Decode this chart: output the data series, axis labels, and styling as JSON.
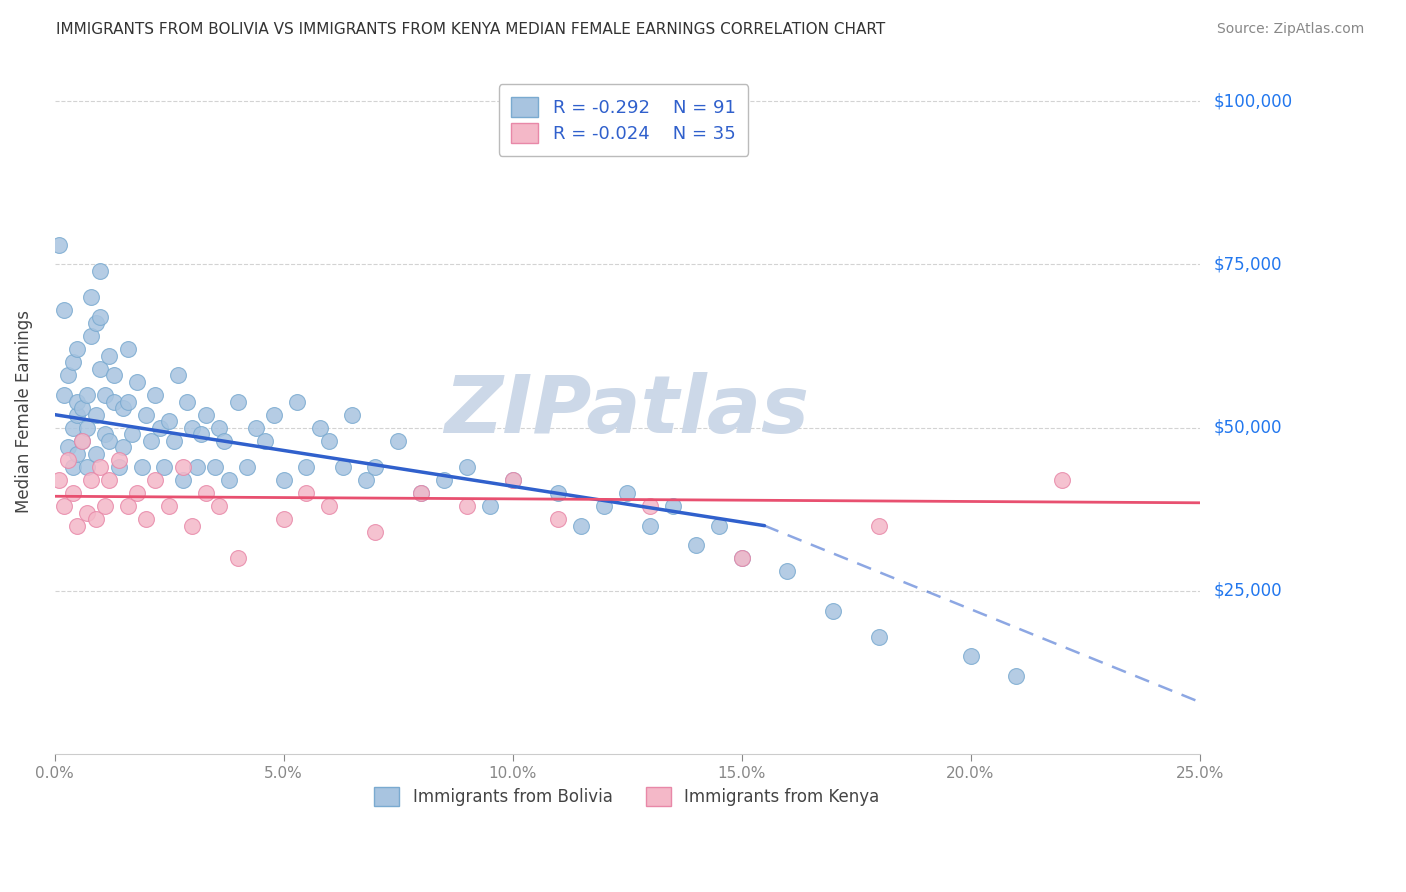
{
  "title": "IMMIGRANTS FROM BOLIVIA VS IMMIGRANTS FROM KENYA MEDIAN FEMALE EARNINGS CORRELATION CHART",
  "source": "Source: ZipAtlas.com",
  "ylabel": "Median Female Earnings",
  "xlim": [
    0.0,
    0.25
  ],
  "ylim": [
    0,
    105000
  ],
  "xtick_positions": [
    0.0,
    0.05,
    0.1,
    0.15,
    0.2,
    0.25
  ],
  "ytick_labels": [
    "$25,000",
    "$50,000",
    "$75,000",
    "$100,000"
  ],
  "ytick_positions": [
    25000,
    50000,
    75000,
    100000
  ],
  "bolivia_color": "#a8c4e0",
  "kenya_color": "#f4b8c8",
  "bolivia_edge": "#7aaad0",
  "kenya_edge": "#e888a8",
  "trend_blue": "#3060cc",
  "trend_pink": "#e85070",
  "legend_R_bolivia": "-0.292",
  "legend_N_bolivia": "91",
  "legend_R_kenya": "-0.024",
  "legend_N_kenya": "35",
  "legend_label_bolivia": "Immigrants from Bolivia",
  "legend_label_kenya": "Immigrants from Kenya",
  "watermark": "ZIPatlas",
  "watermark_color": "#ccd8e8",
  "background_color": "#ffffff",
  "grid_color": "#c8c8c8",
  "bolivia_x": [
    0.001,
    0.002,
    0.002,
    0.003,
    0.003,
    0.004,
    0.004,
    0.004,
    0.005,
    0.005,
    0.005,
    0.005,
    0.006,
    0.006,
    0.007,
    0.007,
    0.007,
    0.008,
    0.008,
    0.009,
    0.009,
    0.009,
    0.01,
    0.01,
    0.01,
    0.011,
    0.011,
    0.012,
    0.012,
    0.013,
    0.013,
    0.014,
    0.015,
    0.015,
    0.016,
    0.016,
    0.017,
    0.018,
    0.019,
    0.02,
    0.021,
    0.022,
    0.023,
    0.024,
    0.025,
    0.026,
    0.027,
    0.028,
    0.029,
    0.03,
    0.031,
    0.032,
    0.033,
    0.035,
    0.036,
    0.037,
    0.038,
    0.04,
    0.042,
    0.044,
    0.046,
    0.048,
    0.05,
    0.053,
    0.055,
    0.058,
    0.06,
    0.063,
    0.065,
    0.068,
    0.07,
    0.075,
    0.08,
    0.085,
    0.09,
    0.095,
    0.1,
    0.11,
    0.115,
    0.12,
    0.125,
    0.13,
    0.135,
    0.14,
    0.145,
    0.15,
    0.16,
    0.17,
    0.18,
    0.2,
    0.21
  ],
  "bolivia_y": [
    78000,
    55000,
    68000,
    47000,
    58000,
    50000,
    44000,
    60000,
    52000,
    46000,
    54000,
    62000,
    48000,
    53000,
    55000,
    50000,
    44000,
    70000,
    64000,
    46000,
    52000,
    66000,
    74000,
    67000,
    59000,
    55000,
    49000,
    61000,
    48000,
    58000,
    54000,
    44000,
    53000,
    47000,
    62000,
    54000,
    49000,
    57000,
    44000,
    52000,
    48000,
    55000,
    50000,
    44000,
    51000,
    48000,
    58000,
    42000,
    54000,
    50000,
    44000,
    49000,
    52000,
    44000,
    50000,
    48000,
    42000,
    54000,
    44000,
    50000,
    48000,
    52000,
    42000,
    54000,
    44000,
    50000,
    48000,
    44000,
    52000,
    42000,
    44000,
    48000,
    40000,
    42000,
    44000,
    38000,
    42000,
    40000,
    35000,
    38000,
    40000,
    35000,
    38000,
    32000,
    35000,
    30000,
    28000,
    22000,
    18000,
    15000,
    12000
  ],
  "kenya_x": [
    0.001,
    0.002,
    0.003,
    0.004,
    0.005,
    0.006,
    0.007,
    0.008,
    0.009,
    0.01,
    0.011,
    0.012,
    0.014,
    0.016,
    0.018,
    0.02,
    0.022,
    0.025,
    0.028,
    0.03,
    0.033,
    0.036,
    0.04,
    0.05,
    0.055,
    0.06,
    0.07,
    0.08,
    0.09,
    0.1,
    0.11,
    0.13,
    0.15,
    0.18,
    0.22
  ],
  "kenya_y": [
    42000,
    38000,
    45000,
    40000,
    35000,
    48000,
    37000,
    42000,
    36000,
    44000,
    38000,
    42000,
    45000,
    38000,
    40000,
    36000,
    42000,
    38000,
    44000,
    35000,
    40000,
    38000,
    30000,
    36000,
    40000,
    38000,
    34000,
    40000,
    38000,
    42000,
    36000,
    38000,
    30000,
    35000,
    42000
  ],
  "trend_b_x0": 0.0,
  "trend_b_y0": 52000,
  "trend_b_x1": 0.155,
  "trend_b_y1": 35000,
  "trend_b_dash_x0": 0.155,
  "trend_b_dash_y0": 35000,
  "trend_b_dash_x1": 0.25,
  "trend_b_dash_y1": 8000,
  "trend_k_x0": 0.0,
  "trend_k_y0": 39500,
  "trend_k_x1": 0.25,
  "trend_k_y1": 38500
}
